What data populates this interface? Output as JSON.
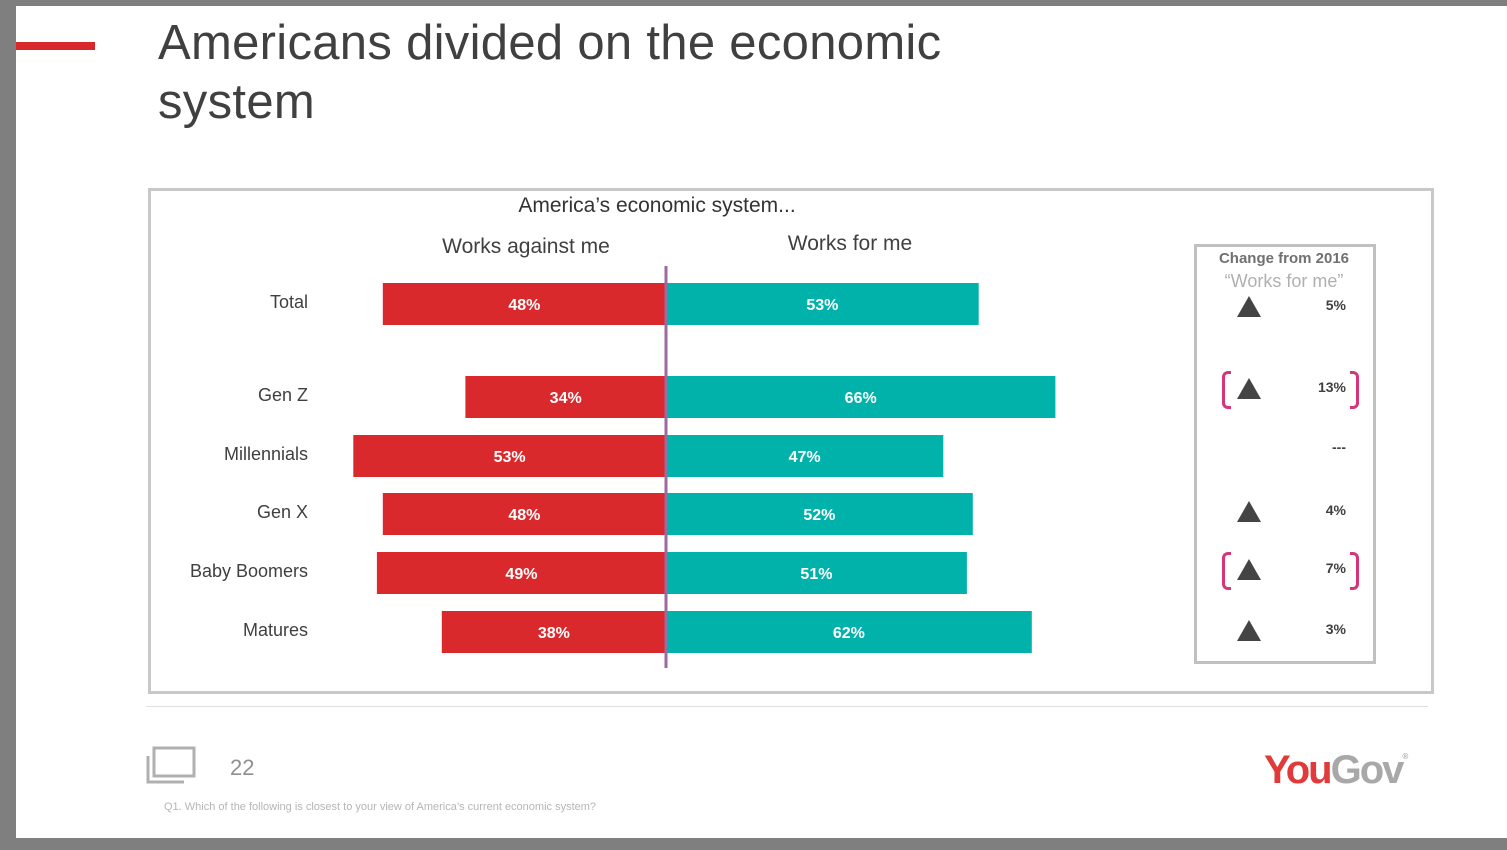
{
  "slide": {
    "title": "Americans divided on the economic system",
    "page_number": "22",
    "footnote": "Q1. Which of the following is closest to your view of America’s current economic system?",
    "logo": {
      "you": "You",
      "gov": "Gov",
      "reg": "®"
    }
  },
  "colors": {
    "against": "#d9292d",
    "for": "#00b2a9",
    "divider": "#9b6aa0",
    "accent": "#d9272e",
    "bracket": "#d6357a"
  },
  "chart_data": {
    "type": "bar",
    "orientation": "horizontal-diverging",
    "title": "America’s economic system...",
    "categories": [
      "Total",
      "Gen Z",
      "Millennials",
      "Gen X",
      "Baby Boomers",
      "Matures"
    ],
    "series": [
      {
        "name": "Works against me",
        "values": [
          48,
          34,
          53,
          48,
          49,
          38
        ],
        "labels": [
          "48%",
          "34%",
          "53%",
          "48%",
          "49%",
          "38%"
        ]
      },
      {
        "name": "Works for me",
        "values": [
          53,
          66,
          47,
          52,
          51,
          62
        ],
        "labels": [
          "53%",
          "66%",
          "47%",
          "52%",
          "51%",
          "62%"
        ]
      }
    ],
    "unit": "%",
    "xlim": [
      -60,
      75
    ]
  },
  "change_panel": {
    "title": "Change from 2016",
    "subtitle": "“Works for me”",
    "rows": [
      {
        "category": "Total",
        "direction": "up",
        "value": "5%",
        "highlighted": false
      },
      {
        "category": "Gen Z",
        "direction": "up",
        "value": "13%",
        "highlighted": true
      },
      {
        "category": "Millennials",
        "direction": "none",
        "value": "---",
        "highlighted": false
      },
      {
        "category": "Gen X",
        "direction": "up",
        "value": "4%",
        "highlighted": false
      },
      {
        "category": "Baby Boomers",
        "direction": "up",
        "value": "7%",
        "highlighted": true
      },
      {
        "category": "Matures",
        "direction": "up",
        "value": "3%",
        "highlighted": false
      }
    ]
  }
}
